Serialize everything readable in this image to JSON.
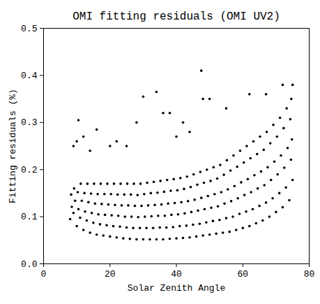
{
  "chart_data": {
    "type": "scatter",
    "title": "OMI fitting residuals (OMI UV2)",
    "x_label": "Solar Zenith Angle",
    "y_label": "Fitting residuals (%)",
    "xlim": [
      0,
      80
    ],
    "xticks": [
      0,
      20,
      40,
      60,
      80
    ],
    "ylim": [
      0,
      0.5
    ],
    "yticks": [
      {
        "value": 0,
        "label": "0.0"
      },
      0.1,
      0.2,
      0.3,
      0.4,
      0.5
    ],
    "color": "#000000",
    "marker": "circle",
    "x": [
      8,
      9,
      8.5,
      9.5,
      8.3,
      9.2,
      10,
      11,
      10.5,
      11.5,
      10.3,
      11.2,
      12,
      13,
      12.5,
      13.5,
      12.3,
      13.2,
      14,
      15,
      14.5,
      15.5,
      14.3,
      15.2,
      16,
      17,
      16.5,
      17.5,
      16.3,
      17.2,
      18,
      19,
      18.5,
      19.5,
      18.3,
      19.2,
      20,
      21,
      20.5,
      21.5,
      20.3,
      21.2,
      22,
      23,
      22.5,
      23.5,
      22.3,
      23.2,
      24,
      25,
      24.5,
      25.5,
      24.3,
      25.2,
      26,
      27,
      26.5,
      27.5,
      26.3,
      27.2,
      28,
      29,
      28.5,
      29.5,
      28.3,
      29.2,
      30,
      31,
      30.5,
      31.5,
      30.3,
      31.2,
      32,
      33,
      32.5,
      33.5,
      32.3,
      33.2,
      34,
      35,
      34.5,
      35.5,
      34.3,
      35.2,
      36,
      37,
      36.5,
      37.5,
      36.3,
      37.2,
      38,
      39,
      38.5,
      39.5,
      38.3,
      39.2,
      40,
      41,
      40.5,
      41.5,
      40.3,
      41.2,
      42,
      43,
      42.5,
      43.5,
      42.3,
      43.2,
      44,
      45,
      44.5,
      45.5,
      44.3,
      45.2,
      46,
      47,
      46.5,
      47.5,
      46.3,
      47.2,
      48,
      49,
      48.5,
      49.5,
      48.3,
      49.2,
      50,
      51,
      50.5,
      51.5,
      50.3,
      51.2,
      52,
      53,
      52.5,
      53.5,
      52.3,
      53.2,
      54,
      55,
      54.5,
      55.5,
      54.3,
      55.2,
      56,
      57,
      56.5,
      57.5,
      56.3,
      57.2,
      58,
      59,
      58.5,
      59.5,
      58.3,
      59.2,
      60,
      61,
      60.5,
      61.5,
      60.3,
      61.2,
      62,
      63,
      62.5,
      63.5,
      62.3,
      63.2,
      64,
      65,
      64.5,
      65.5,
      64.3,
      65.2,
      66,
      67,
      66.5,
      67.5,
      66.3,
      67.2,
      68,
      69,
      68.5,
      69.5,
      68.3,
      69.2,
      70,
      71,
      70.5,
      71.5,
      70.3,
      71.2,
      72,
      73,
      72.5,
      73.5,
      72.3,
      73.2,
      74,
      75,
      74.5,
      74.8,
      74.3,
      74.6,
      9,
      10.5,
      10,
      12,
      14,
      16,
      20,
      22,
      25,
      28,
      30,
      34,
      36,
      38,
      40,
      42,
      44,
      47.5,
      48,
      50,
      55,
      62,
      67,
      72,
      75
    ],
    "values": [
      0.095,
      0.108,
      0.121,
      0.134,
      0.147,
      0.16,
      0.08,
      0.098,
      0.116,
      0.134,
      0.152,
      0.17,
      0.072,
      0.092,
      0.111,
      0.131,
      0.15,
      0.17,
      0.066,
      0.087,
      0.108,
      0.128,
      0.149,
      0.17,
      0.062,
      0.084,
      0.105,
      0.127,
      0.148,
      0.17,
      0.06,
      0.082,
      0.104,
      0.126,
      0.148,
      0.17,
      0.058,
      0.08,
      0.103,
      0.125,
      0.148,
      0.17,
      0.056,
      0.079,
      0.102,
      0.124,
      0.147,
      0.17,
      0.054,
      0.077,
      0.1,
      0.124,
      0.147,
      0.17,
      0.053,
      0.076,
      0.1,
      0.123,
      0.147,
      0.17,
      0.052,
      0.076,
      0.099,
      0.123,
      0.146,
      0.17,
      0.052,
      0.076,
      0.1,
      0.124,
      0.148,
      0.172,
      0.052,
      0.076,
      0.101,
      0.125,
      0.15,
      0.174,
      0.052,
      0.077,
      0.102,
      0.126,
      0.151,
      0.176,
      0.052,
      0.077,
      0.102,
      0.128,
      0.153,
      0.178,
      0.053,
      0.078,
      0.104,
      0.129,
      0.155,
      0.18,
      0.054,
      0.08,
      0.105,
      0.131,
      0.156,
      0.182,
      0.055,
      0.081,
      0.107,
      0.133,
      0.159,
      0.185,
      0.056,
      0.083,
      0.11,
      0.136,
      0.163,
      0.19,
      0.058,
      0.085,
      0.113,
      0.14,
      0.168,
      0.195,
      0.06,
      0.088,
      0.116,
      0.144,
      0.172,
      0.2,
      0.062,
      0.091,
      0.119,
      0.148,
      0.176,
      0.205,
      0.064,
      0.093,
      0.122,
      0.152,
      0.181,
      0.21,
      0.066,
      0.097,
      0.128,
      0.158,
      0.189,
      0.22,
      0.068,
      0.1,
      0.133,
      0.165,
      0.198,
      0.23,
      0.072,
      0.106,
      0.139,
      0.173,
      0.206,
      0.24,
      0.076,
      0.111,
      0.146,
      0.18,
      0.215,
      0.25,
      0.08,
      0.116,
      0.152,
      0.188,
      0.224,
      0.26,
      0.086,
      0.123,
      0.16,
      0.196,
      0.233,
      0.27,
      0.092,
      0.13,
      0.167,
      0.205,
      0.242,
      0.28,
      0.1,
      0.139,
      0.178,
      0.217,
      0.256,
      0.295,
      0.11,
      0.15,
      0.19,
      0.23,
      0.27,
      0.31,
      0.12,
      0.162,
      0.204,
      0.246,
      0.288,
      0.33,
      0.135,
      0.178,
      0.221,
      0.264,
      0.307,
      0.35,
      0.25,
      0.305,
      0.26,
      0.27,
      0.24,
      0.285,
      0.25,
      0.26,
      0.25,
      0.3,
      0.355,
      0.365,
      0.32,
      0.32,
      0.27,
      0.3,
      0.28,
      0.41,
      0.35,
      0.35,
      0.33,
      0.36,
      0.36,
      0.38,
      0.38
    ]
  }
}
